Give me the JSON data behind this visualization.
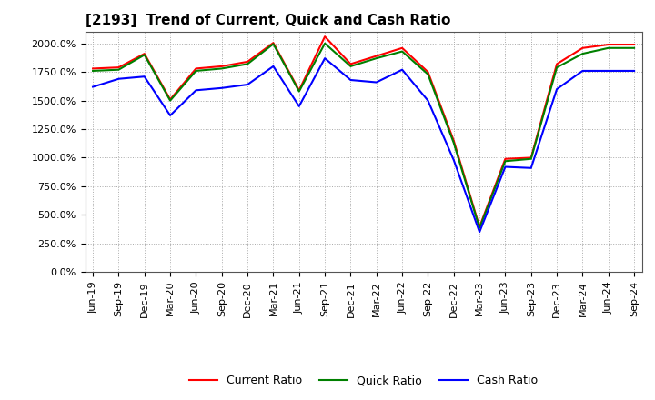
{
  "title": "[2193]  Trend of Current, Quick and Cash Ratio",
  "background_color": "#ffffff",
  "plot_background": "#ffffff",
  "grid_color": "#aaaaaa",
  "x_labels": [
    "Jun-19",
    "Sep-19",
    "Dec-19",
    "Mar-20",
    "Jun-20",
    "Sep-20",
    "Dec-20",
    "Mar-21",
    "Jun-21",
    "Sep-21",
    "Dec-21",
    "Mar-22",
    "Jun-22",
    "Sep-22",
    "Dec-22",
    "Mar-23",
    "Jun-23",
    "Sep-23",
    "Dec-23",
    "Mar-24",
    "Jun-24",
    "Sep-24"
  ],
  "current_ratio": [
    1780,
    1790,
    1910,
    1510,
    1780,
    1800,
    1840,
    2005,
    1590,
    2060,
    1820,
    1890,
    1960,
    1750,
    1150,
    395,
    990,
    1000,
    1820,
    1960,
    1990,
    1990
  ],
  "quick_ratio": [
    1760,
    1770,
    1900,
    1500,
    1760,
    1780,
    1820,
    1995,
    1580,
    2000,
    1800,
    1870,
    1930,
    1730,
    1130,
    385,
    970,
    990,
    1790,
    1910,
    1960,
    1960
  ],
  "cash_ratio": [
    1620,
    1690,
    1710,
    1370,
    1590,
    1610,
    1640,
    1800,
    1450,
    1870,
    1680,
    1660,
    1770,
    1500,
    980,
    350,
    920,
    910,
    1600,
    1760,
    1760,
    1760
  ],
  "current_color": "#ff0000",
  "quick_color": "#008000",
  "cash_color": "#0000ff",
  "ylim": [
    0,
    2100
  ],
  "yticks": [
    0,
    250,
    500,
    750,
    1000,
    1250,
    1500,
    1750,
    2000
  ],
  "line_width": 1.5,
  "title_fontsize": 11,
  "tick_fontsize": 8,
  "legend_fontsize": 9
}
